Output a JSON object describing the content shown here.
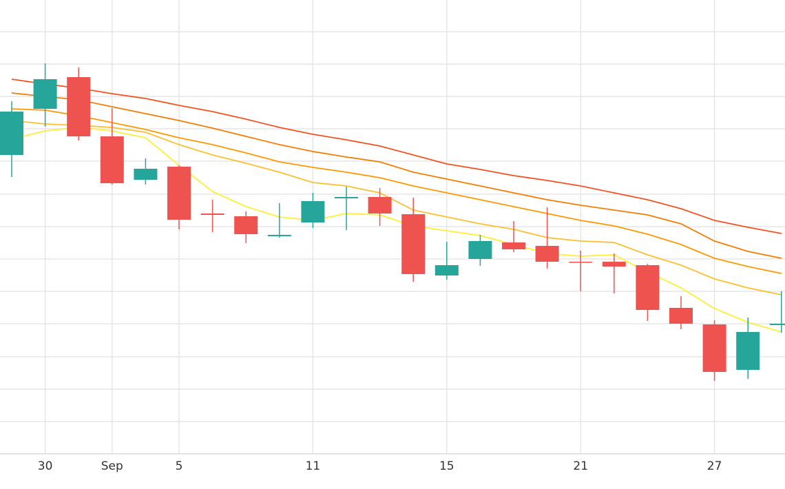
{
  "chart_data": {
    "type": "candlestick",
    "categories": [
      null,
      "30",
      null,
      "Sep",
      null,
      "5",
      null,
      null,
      null,
      "11",
      null,
      null,
      null,
      "15",
      null,
      null,
      null,
      "21",
      null,
      null,
      null,
      "27",
      null,
      null
    ],
    "open": [
      434,
      501,
      547,
      461,
      398,
      417,
      349,
      345,
      316,
      336,
      371,
      373,
      348,
      259,
      283,
      307,
      302,
      279,
      279,
      274,
      212,
      188,
      122,
      187
    ],
    "high": [
      512,
      567,
      561,
      502,
      429,
      419,
      369,
      352,
      364,
      379,
      388,
      386,
      372,
      308,
      318,
      338,
      358,
      295,
      291,
      276,
      229,
      194,
      198,
      236
    ],
    "low": [
      402,
      475,
      455,
      391,
      391,
      326,
      322,
      306,
      314,
      328,
      325,
      331,
      250,
      253,
      273,
      293,
      269,
      236,
      233,
      193,
      181,
      106,
      109,
      176
    ],
    "close": [
      497,
      544,
      461,
      393,
      414,
      340,
      347,
      319,
      318,
      367,
      373,
      349,
      261,
      274,
      309,
      297,
      279,
      278,
      272,
      209,
      189,
      119,
      177,
      189
    ],
    "up_color": "#26a69a",
    "down_color": "#ef5350",
    "lines": [
      {
        "color": "#f4511e",
        "values": [
          544,
          537,
          531,
          523,
          516,
          506,
          497,
          486,
          474,
          464,
          456,
          447,
          434,
          421,
          413,
          404,
          397,
          389,
          379,
          369,
          356,
          339,
          329,
          320
        ]
      },
      {
        "color": "#f57c00",
        "values": [
          524,
          519,
          514,
          504,
          494,
          484,
          473,
          461,
          449,
          439,
          431,
          424,
          409,
          399,
          389,
          379,
          369,
          361,
          354,
          347,
          334,
          309,
          294,
          284
        ]
      },
      {
        "color": "#ff9800",
        "values": [
          501,
          499,
          491,
          481,
          471,
          459,
          449,
          437,
          424,
          416,
          409,
          401,
          389,
          379,
          369,
          359,
          349,
          339,
          331,
          319,
          304,
          284,
          272,
          262
        ]
      },
      {
        "color": "#fbc02d",
        "values": [
          484,
          479,
          477,
          474,
          467,
          449,
          434,
          422,
          409,
          394,
          389,
          379,
          354,
          344,
          334,
          326,
          314,
          309,
          307,
          289,
          274,
          254,
          241,
          231
        ]
      },
      {
        "color": "#ffee33",
        "values": [
          457,
          469,
          474,
          469,
          459,
          419,
          381,
          359,
          344,
          339,
          349,
          347,
          331,
          324,
          317,
          304,
          291,
          287,
          289,
          264,
          241,
          211,
          191,
          177
        ]
      }
    ],
    "ylim": [
      0,
      659
    ],
    "yticks": [
      0,
      47,
      94,
      141,
      189,
      236,
      283,
      330,
      377,
      425,
      472,
      519,
      566,
      613
    ],
    "grid": true
  }
}
